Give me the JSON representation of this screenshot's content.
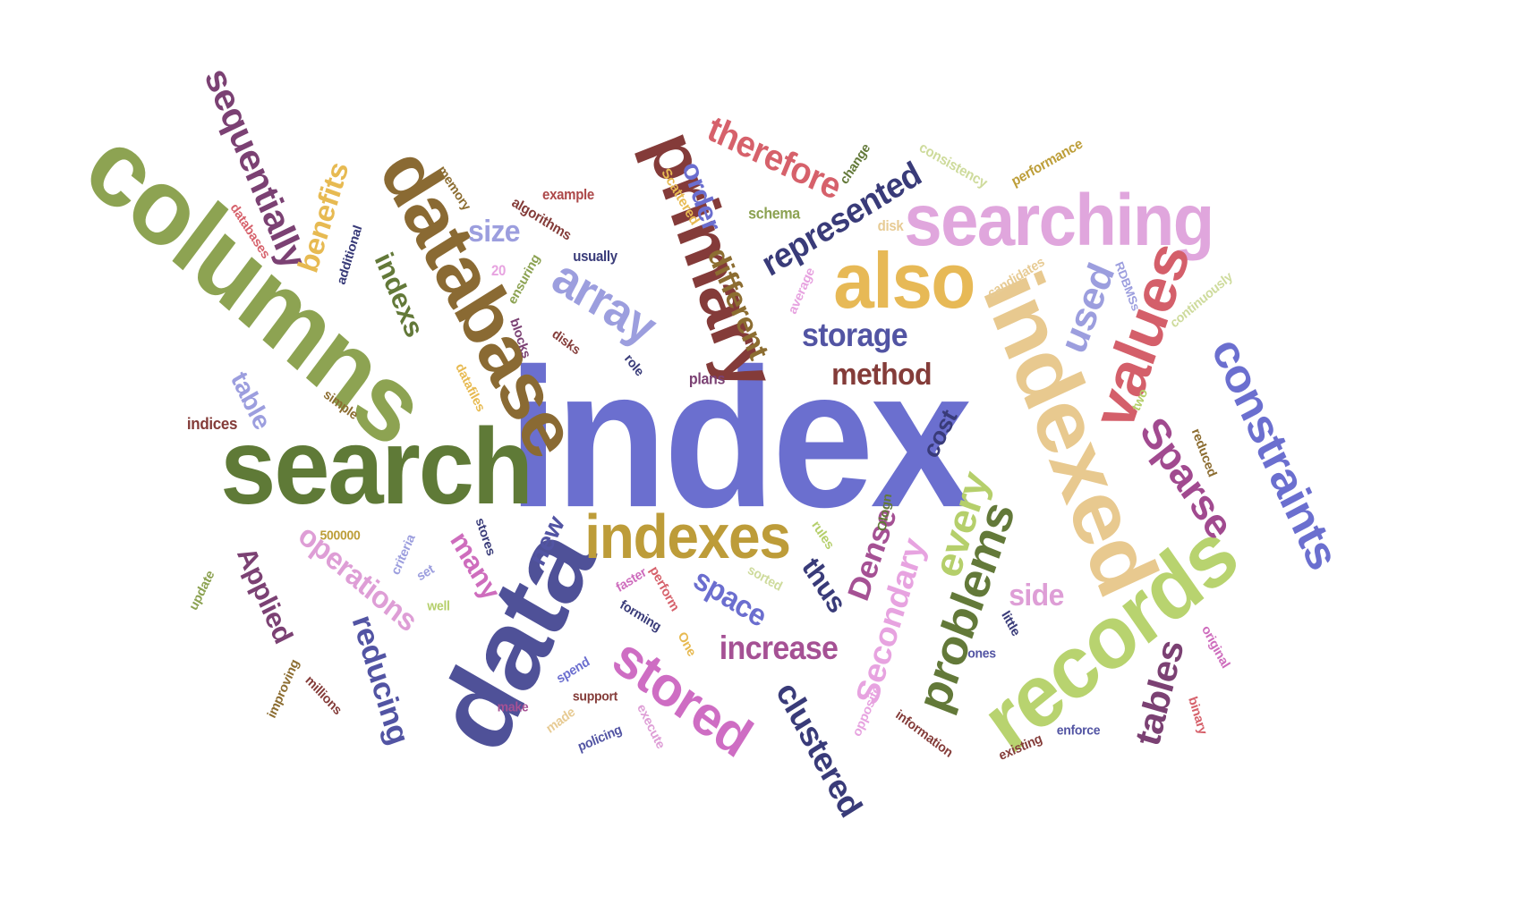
{
  "words": [
    {
      "text": "index",
      "color": "#6b6fcf"
    },
    {
      "text": "search",
      "color": "#5f7a37"
    },
    {
      "text": "columns",
      "color": "#8da352"
    },
    {
      "text": "data",
      "color": "#4f5198"
    },
    {
      "text": "records",
      "color": "#b8d36f"
    },
    {
      "text": "indexed",
      "color": "#e8c98f"
    },
    {
      "text": "database",
      "color": "#8a6a33"
    },
    {
      "text": "primary",
      "color": "#843b39"
    },
    {
      "text": "searching",
      "color": "#e0a6dd"
    },
    {
      "text": "also",
      "color": "#e7b956"
    },
    {
      "text": "values",
      "color": "#d45f6a"
    },
    {
      "text": "indexes",
      "color": "#bd9c39"
    },
    {
      "text": "constraints",
      "color": "#6b6fcf"
    },
    {
      "text": "stored",
      "color": "#ce6dc3"
    },
    {
      "text": "Sparse",
      "color": "#a14a8f"
    },
    {
      "text": "problems",
      "color": "#637939"
    },
    {
      "text": "sequentially",
      "color": "#7b4173"
    },
    {
      "text": "array",
      "color": "#9c9ede"
    },
    {
      "text": "Secondary",
      "color": "#e7a3e0"
    },
    {
      "text": "tables",
      "color": "#7b4173"
    },
    {
      "text": "clustered",
      "color": "#393b79"
    },
    {
      "text": "used",
      "color": "#9c9ede"
    },
    {
      "text": "every",
      "color": "#b5cf6b"
    },
    {
      "text": "therefore",
      "color": "#d6616b"
    },
    {
      "text": "represented",
      "color": "#393b79"
    },
    {
      "text": "reducing",
      "color": "#5254a3"
    },
    {
      "text": "operations",
      "color": "#de9ed6"
    },
    {
      "text": "benefits",
      "color": "#e7ba52"
    },
    {
      "text": "different",
      "color": "#8c6d31"
    },
    {
      "text": "indexs",
      "color": "#637939"
    },
    {
      "text": "storage",
      "color": "#5254a3"
    },
    {
      "text": "method",
      "color": "#843c39"
    },
    {
      "text": "increase",
      "color": "#a55194"
    },
    {
      "text": "Applied",
      "color": "#7b4173"
    },
    {
      "text": "Dense",
      "color": "#a55194"
    },
    {
      "text": "many",
      "color": "#ce6dbd"
    },
    {
      "text": "space",
      "color": "#6b6ecf"
    },
    {
      "text": "thus",
      "color": "#393b79"
    },
    {
      "text": "table",
      "color": "#9c9ede"
    },
    {
      "text": "size",
      "color": "#9c9ede"
    },
    {
      "text": "order",
      "color": "#6b6ecf"
    },
    {
      "text": "side",
      "color": "#de9ed6"
    },
    {
      "text": "new",
      "color": "#5254a3"
    },
    {
      "text": "cost",
      "color": "#393b79"
    },
    {
      "text": "consistency",
      "color": "#cedb9c"
    },
    {
      "text": "performance",
      "color": "#bd9e39"
    },
    {
      "text": "change",
      "color": "#637939"
    },
    {
      "text": "schema",
      "color": "#8ca252"
    },
    {
      "text": "Scattered",
      "color": "#e7ba52"
    },
    {
      "text": "example",
      "color": "#ad494a"
    },
    {
      "text": "algorithms",
      "color": "#843c39"
    },
    {
      "text": "memory",
      "color": "#8c6d31"
    },
    {
      "text": "databases",
      "color": "#d6616b"
    },
    {
      "text": "additional",
      "color": "#393b79"
    },
    {
      "text": "usually",
      "color": "#393b79"
    },
    {
      "text": "disk",
      "color": "#e7cb94"
    },
    {
      "text": "candidates",
      "color": "#e7cb94"
    },
    {
      "text": "continuously",
      "color": "#cedb9c"
    },
    {
      "text": "average",
      "color": "#e7a3e0"
    },
    {
      "text": "RDBMSs",
      "color": "#9c9ede"
    },
    {
      "text": "ensuring",
      "color": "#8ca252"
    },
    {
      "text": "20",
      "color": "#e7a3e0"
    },
    {
      "text": "blocks",
      "color": "#7b4173"
    },
    {
      "text": "disks",
      "color": "#843c39"
    },
    {
      "text": "datafiles",
      "color": "#e7ba52"
    },
    {
      "text": "role",
      "color": "#393b79"
    },
    {
      "text": "plans",
      "color": "#7b4173"
    },
    {
      "text": "simple",
      "color": "#8c6d31"
    },
    {
      "text": "indices",
      "color": "#843c39"
    },
    {
      "text": "two",
      "color": "#b5cf6b"
    },
    {
      "text": "reduced",
      "color": "#8c6d31"
    },
    {
      "text": "500000",
      "color": "#bd9e39"
    },
    {
      "text": "criteria",
      "color": "#9c9ede"
    },
    {
      "text": "stores",
      "color": "#393b79"
    },
    {
      "text": "rules",
      "color": "#b5cf6b"
    },
    {
      "text": "Ologn",
      "color": "#637939"
    },
    {
      "text": "sorted",
      "color": "#cedb9c"
    },
    {
      "text": "set",
      "color": "#9c9ede"
    },
    {
      "text": "faster",
      "color": "#ce6dbd"
    },
    {
      "text": "perform",
      "color": "#d6616b"
    },
    {
      "text": "well",
      "color": "#b5cf6b"
    },
    {
      "text": "forming",
      "color": "#393b79"
    },
    {
      "text": "update",
      "color": "#8ca252"
    },
    {
      "text": "One",
      "color": "#e7ba52"
    },
    {
      "text": "little",
      "color": "#393b79"
    },
    {
      "text": "ones",
      "color": "#5254a3"
    },
    {
      "text": "original",
      "color": "#ce6dbd"
    },
    {
      "text": "improving",
      "color": "#8c6d31"
    },
    {
      "text": "millions",
      "color": "#843c39"
    },
    {
      "text": "spend",
      "color": "#6b6ecf"
    },
    {
      "text": "make",
      "color": "#a55194"
    },
    {
      "text": "support",
      "color": "#843c39"
    },
    {
      "text": "made",
      "color": "#e7cb94"
    },
    {
      "text": "policing",
      "color": "#5254a3"
    },
    {
      "text": "execute",
      "color": "#de9ed6"
    },
    {
      "text": "opposite",
      "color": "#e7a3e0"
    },
    {
      "text": "information",
      "color": "#843c39"
    },
    {
      "text": "existing",
      "color": "#843c39"
    },
    {
      "text": "enforce",
      "color": "#5254a3"
    },
    {
      "text": "binary",
      "color": "#d6616b"
    }
  ]
}
